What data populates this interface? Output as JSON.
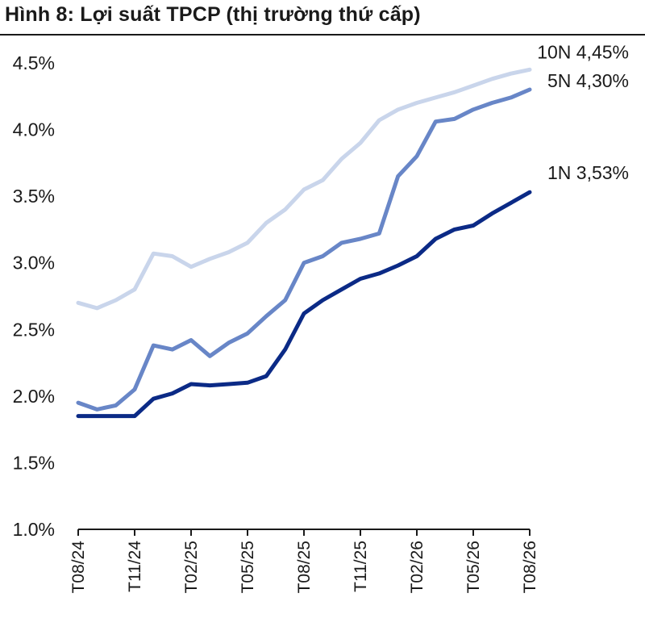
{
  "title": "Hình 8: Lợi suất TPCP (thị trường thứ cấp)",
  "chart_data": {
    "type": "line",
    "title": "Hình 8: Lợi suất TPCP (thị trường thứ cấp)",
    "x": [
      "T08/24",
      "T09/24",
      "T10/24",
      "T11/24",
      "T12/24",
      "T01/25",
      "T02/25",
      "T03/25",
      "T04/25",
      "T05/25",
      "T06/25",
      "T07/25",
      "T08/25",
      "T09/25",
      "T10/25",
      "T11/25",
      "T12/25",
      "T01/26",
      "T02/26",
      "T03/26",
      "T04/26",
      "T05/26",
      "T06/26",
      "T07/26",
      "T08/26"
    ],
    "x_tick_labels": [
      "T08/24",
      "T11/24",
      "T02/25",
      "T05/25",
      "T08/25",
      "T11/25",
      "T02/26",
      "T05/26",
      "T08/26"
    ],
    "y_tick_labels": [
      "1.0%",
      "1.5%",
      "2.0%",
      "2.5%",
      "3.0%",
      "3.5%",
      "4.0%",
      "4.5%"
    ],
    "ylim": [
      1.0,
      4.5
    ],
    "y_unit": "%",
    "grid": false,
    "series": [
      {
        "name": "10N",
        "end_label": "10N 4,45%",
        "color": "#c9d5eb",
        "values": [
          2.7,
          2.66,
          2.72,
          2.8,
          3.07,
          3.05,
          2.97,
          3.03,
          3.08,
          3.15,
          3.3,
          3.4,
          3.55,
          3.62,
          3.78,
          3.9,
          4.07,
          4.15,
          4.2,
          4.24,
          4.28,
          4.33,
          4.38,
          4.42,
          4.45
        ]
      },
      {
        "name": "5N",
        "end_label": "5N 4,30%",
        "color": "#6886c7",
        "values": [
          1.95,
          1.9,
          1.93,
          2.05,
          2.38,
          2.35,
          2.42,
          2.3,
          2.4,
          2.47,
          2.6,
          2.72,
          3.0,
          3.05,
          3.15,
          3.18,
          3.22,
          3.65,
          3.8,
          4.06,
          4.08,
          4.15,
          4.2,
          4.24,
          4.3
        ]
      },
      {
        "name": "1N",
        "end_label": "1N 3,53%",
        "color": "#0b2a86",
        "values": [
          1.85,
          1.85,
          1.85,
          1.85,
          1.98,
          2.02,
          2.09,
          2.08,
          2.09,
          2.1,
          2.15,
          2.35,
          2.62,
          2.72,
          2.8,
          2.88,
          2.92,
          2.98,
          3.05,
          3.18,
          3.25,
          3.28,
          3.37,
          3.45,
          3.53
        ]
      }
    ]
  }
}
